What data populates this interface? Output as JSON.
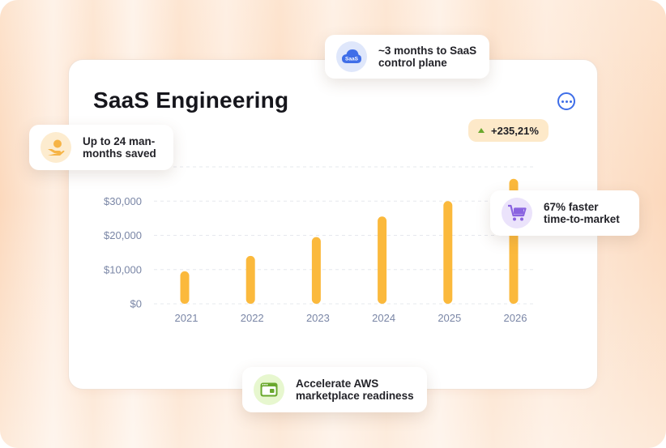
{
  "card": {
    "title": "SaaS Engineering",
    "growth_badge": "+235,21%"
  },
  "callouts": {
    "saas_control_plane": {
      "text": "~3 months to SaaS\ncontrol plane",
      "icon": "saas-cloud-icon",
      "icon_label": "SaaS",
      "color": "#3f6ee8"
    },
    "man_months": {
      "text": "Up to 24 man-\nmonths saved",
      "icon": "coin-hand-icon",
      "color": "#f6b446"
    },
    "time_to_market": {
      "text": "67% faster\ntime-to-market",
      "icon": "shopping-cart-icon",
      "color": "#8a63e0"
    },
    "aws_marketplace": {
      "text": "Accelerate AWS\nmarketplace readiness",
      "icon": "browser-window-icon",
      "color": "#6aa82d"
    }
  },
  "colors": {
    "bar": "#fbb93c",
    "axis_text": "#7a86a6",
    "grid": "#e6e8ee",
    "accent_blue": "#3f6ee8"
  },
  "chart_data": {
    "type": "bar",
    "title": "SaaS Engineering",
    "categories": [
      "2021",
      "2022",
      "2023",
      "2024",
      "2025",
      "2026"
    ],
    "values": [
      9500,
      14000,
      19500,
      25500,
      30000,
      36500
    ],
    "ylim": [
      0,
      40000
    ],
    "yticks": [
      {
        "value": 0,
        "label": "$0"
      },
      {
        "value": 10000,
        "label": "$10,000"
      },
      {
        "value": 20000,
        "label": "$20,000"
      },
      {
        "value": 30000,
        "label": "$30,000"
      }
    ],
    "xlabel": "",
    "ylabel": "",
    "grid": true,
    "gridlines": [
      0,
      10000,
      20000,
      30000,
      40000
    ]
  }
}
